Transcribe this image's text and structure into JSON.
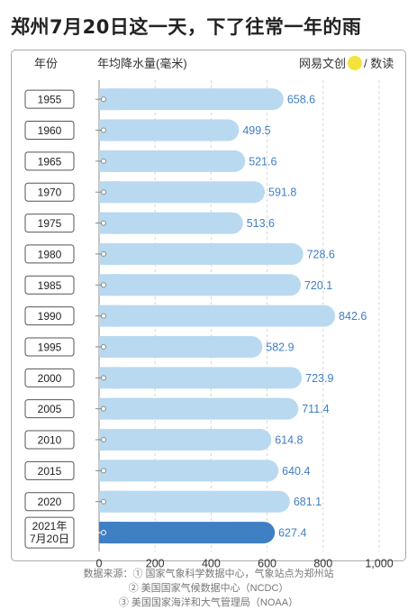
{
  "title": "郑州7月20日这一天，下了往常一年的雨",
  "header": {
    "year_label": "年份",
    "value_label": "年均降水量(毫米)",
    "brand": "网易文创",
    "brand_suffix": "/ 数读"
  },
  "source": {
    "line1": "数据来源：① 国家气象科学数据中心，气象站点为郑州站",
    "line2": "② 美国国家气候数据中心（NCDC）",
    "line3": "③ 美国国家海洋和大气管理局（NOAA）"
  },
  "colors": {
    "bar": "#b8d9f0",
    "highlight_bar": "#3f7fc4",
    "value_text": "#3f7fc4",
    "grid": "#d5d5d5"
  },
  "chart_data": {
    "type": "bar",
    "orientation": "horizontal",
    "categories": [
      "1955",
      "1960",
      "1965",
      "1970",
      "1975",
      "1980",
      "1985",
      "1990",
      "1995",
      "2000",
      "2005",
      "2010",
      "2015",
      "2020",
      "2021年 7月20日"
    ],
    "values": [
      658.6,
      499.5,
      521.6,
      591.8,
      513.6,
      728.6,
      720.1,
      842.6,
      582.9,
      723.9,
      711.4,
      614.8,
      640.4,
      681.1,
      627.4
    ],
    "value_labels": [
      "658.6",
      "499.5",
      "521.6",
      "591.8",
      "513.6",
      "728.6",
      "720.1",
      "842.6",
      "582.9",
      "723.9",
      "711.4",
      "614.8",
      "640.4",
      "681.1",
      "627.4"
    ],
    "highlight_index": 14,
    "xlim": [
      0,
      1000
    ],
    "xticks": [
      0,
      200,
      400,
      600,
      800,
      1000
    ],
    "xtick_labels": [
      "0",
      "200",
      "400",
      "600",
      "800",
      "1,000"
    ],
    "grid": true
  }
}
